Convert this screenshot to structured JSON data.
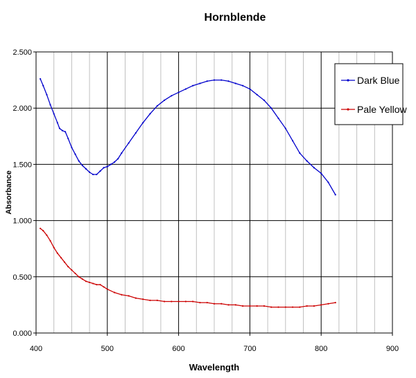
{
  "chart_data": {
    "type": "line",
    "title": "Hornblende",
    "xlabel": "Wavelength",
    "ylabel": "Absorbance",
    "xlim": [
      400,
      900
    ],
    "ylim": [
      0,
      2.5
    ],
    "x_major_ticks": [
      400,
      500,
      600,
      700,
      800,
      900
    ],
    "x_tick_labels": [
      "400",
      "500",
      "600",
      "700",
      "800",
      "900"
    ],
    "x_minor_step": 25,
    "y_ticks": [
      0,
      0.5,
      1.0,
      1.5,
      2.0,
      2.5
    ],
    "y_tick_labels": [
      "0.000",
      "0.500",
      "1.000",
      "1.500",
      "2.000",
      "2.500"
    ],
    "grid": true,
    "legend_position": "top-right",
    "series": [
      {
        "name": "Dark Blue",
        "color": "#0000cc",
        "marker": "dot",
        "points": [
          [
            406,
            2.26
          ],
          [
            410,
            2.2
          ],
          [
            415,
            2.12
          ],
          [
            420,
            2.03
          ],
          [
            425,
            1.95
          ],
          [
            430,
            1.87
          ],
          [
            433,
            1.82
          ],
          [
            437,
            1.8
          ],
          [
            441,
            1.79
          ],
          [
            445,
            1.73
          ],
          [
            450,
            1.65
          ],
          [
            455,
            1.59
          ],
          [
            460,
            1.53
          ],
          [
            465,
            1.49
          ],
          [
            470,
            1.46
          ],
          [
            475,
            1.43
          ],
          [
            480,
            1.41
          ],
          [
            485,
            1.41
          ],
          [
            490,
            1.44
          ],
          [
            495,
            1.47
          ],
          [
            500,
            1.48
          ],
          [
            505,
            1.5
          ],
          [
            510,
            1.52
          ],
          [
            515,
            1.55
          ],
          [
            520,
            1.6
          ],
          [
            530,
            1.69
          ],
          [
            540,
            1.78
          ],
          [
            550,
            1.87
          ],
          [
            560,
            1.95
          ],
          [
            570,
            2.02
          ],
          [
            580,
            2.07
          ],
          [
            590,
            2.11
          ],
          [
            600,
            2.14
          ],
          [
            610,
            2.17
          ],
          [
            620,
            2.2
          ],
          [
            630,
            2.22
          ],
          [
            640,
            2.24
          ],
          [
            650,
            2.25
          ],
          [
            660,
            2.25
          ],
          [
            670,
            2.24
          ],
          [
            680,
            2.22
          ],
          [
            690,
            2.2
          ],
          [
            700,
            2.17
          ],
          [
            710,
            2.12
          ],
          [
            720,
            2.07
          ],
          [
            730,
            2.0
          ],
          [
            740,
            1.91
          ],
          [
            750,
            1.82
          ],
          [
            760,
            1.71
          ],
          [
            770,
            1.6
          ],
          [
            780,
            1.53
          ],
          [
            790,
            1.47
          ],
          [
            800,
            1.42
          ],
          [
            810,
            1.34
          ],
          [
            820,
            1.23
          ]
        ]
      },
      {
        "name": "Pale Yellow",
        "color": "#cc0000",
        "marker": "dot",
        "points": [
          [
            406,
            0.93
          ],
          [
            410,
            0.91
          ],
          [
            415,
            0.87
          ],
          [
            420,
            0.82
          ],
          [
            425,
            0.76
          ],
          [
            430,
            0.71
          ],
          [
            435,
            0.67
          ],
          [
            440,
            0.63
          ],
          [
            445,
            0.59
          ],
          [
            450,
            0.56
          ],
          [
            455,
            0.53
          ],
          [
            460,
            0.5
          ],
          [
            465,
            0.48
          ],
          [
            470,
            0.46
          ],
          [
            475,
            0.45
          ],
          [
            480,
            0.44
          ],
          [
            485,
            0.43
          ],
          [
            490,
            0.43
          ],
          [
            495,
            0.41
          ],
          [
            500,
            0.39
          ],
          [
            510,
            0.36
          ],
          [
            520,
            0.34
          ],
          [
            530,
            0.33
          ],
          [
            540,
            0.31
          ],
          [
            550,
            0.3
          ],
          [
            560,
            0.29
          ],
          [
            570,
            0.29
          ],
          [
            580,
            0.28
          ],
          [
            590,
            0.28
          ],
          [
            600,
            0.28
          ],
          [
            610,
            0.28
          ],
          [
            620,
            0.28
          ],
          [
            630,
            0.27
          ],
          [
            640,
            0.27
          ],
          [
            650,
            0.26
          ],
          [
            660,
            0.26
          ],
          [
            670,
            0.25
          ],
          [
            680,
            0.25
          ],
          [
            690,
            0.24
          ],
          [
            700,
            0.24
          ],
          [
            710,
            0.24
          ],
          [
            720,
            0.24
          ],
          [
            730,
            0.23
          ],
          [
            740,
            0.23
          ],
          [
            750,
            0.23
          ],
          [
            760,
            0.23
          ],
          [
            770,
            0.23
          ],
          [
            780,
            0.24
          ],
          [
            790,
            0.24
          ],
          [
            800,
            0.25
          ],
          [
            810,
            0.26
          ],
          [
            820,
            0.27
          ]
        ]
      }
    ]
  }
}
